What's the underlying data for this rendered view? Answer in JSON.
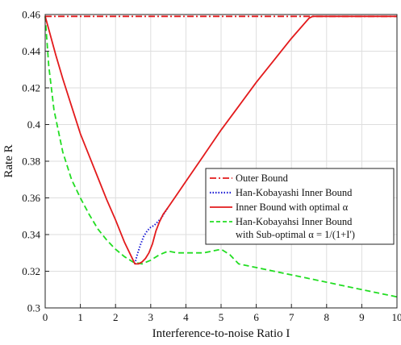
{
  "chart_data": {
    "type": "line",
    "title": "",
    "xlabel": "Interference-to-noise Ratio I",
    "ylabel": "Rate R",
    "xlim": [
      0,
      10
    ],
    "ylim": [
      0.3,
      0.46
    ],
    "xticks": [
      0,
      1,
      2,
      3,
      4,
      5,
      6,
      7,
      8,
      9,
      10
    ],
    "yticks": [
      0.3,
      0.32,
      0.34,
      0.36,
      0.38,
      0.4,
      0.42,
      0.44,
      0.46
    ],
    "xtick_labels": [
      "0",
      "1",
      "2",
      "3",
      "4",
      "5",
      "6",
      "7",
      "8",
      "9",
      "10"
    ],
    "ytick_labels": [
      "0.3",
      "0.32",
      "0.34",
      "0.36",
      "0.38",
      "0.4",
      "0.42",
      "0.44",
      "0.46"
    ],
    "grid": true,
    "legend_position": "right-middle",
    "series": [
      {
        "name": "Outer Bound",
        "color": "#e31a1c",
        "style": "dashdot",
        "x": [
          0,
          10
        ],
        "y": [
          0.459,
          0.459
        ]
      },
      {
        "name": "Han-Kobayashi Inner Bound",
        "color": "#1f1fd6",
        "style": "dotted",
        "x": [
          2.55,
          2.6,
          2.7,
          2.8,
          2.9,
          3.0,
          3.1,
          3.2,
          3.3,
          3.4,
          3.5
        ],
        "y": [
          0.324,
          0.328,
          0.334,
          0.339,
          0.342,
          0.344,
          0.345,
          0.347,
          0.349,
          0.352,
          0.355
        ]
      },
      {
        "name": "Inner Bound with optimal α",
        "color": "#e31a1c",
        "style": "solid",
        "x": [
          0,
          0.1,
          0.3,
          0.5,
          0.75,
          1.0,
          1.25,
          1.5,
          1.75,
          2.0,
          2.25,
          2.5,
          2.55,
          2.65,
          2.75,
          2.85,
          2.95,
          3.05,
          3.15,
          3.25,
          3.35,
          3.5,
          3.75,
          4.0,
          4.5,
          5.0,
          5.5,
          6.0,
          6.5,
          7.0,
          7.5,
          7.6,
          8.0,
          9.0,
          10.0
        ],
        "y": [
          0.459,
          0.452,
          0.438,
          0.425,
          0.41,
          0.395,
          0.383,
          0.371,
          0.359,
          0.348,
          0.336,
          0.326,
          0.324,
          0.324,
          0.325,
          0.327,
          0.33,
          0.335,
          0.342,
          0.347,
          0.351,
          0.355,
          0.362,
          0.369,
          0.383,
          0.397,
          0.41,
          0.423,
          0.435,
          0.447,
          0.458,
          0.459,
          0.459,
          0.459,
          0.459
        ]
      },
      {
        "name": "Han-Kobayahsi Inner Bound with Sub-optimal α = 1/(1+I')",
        "color": "#22dd22",
        "style": "dashed",
        "x": [
          0,
          0.1,
          0.25,
          0.5,
          0.75,
          1.0,
          1.25,
          1.5,
          1.75,
          2.0,
          2.25,
          2.5,
          2.75,
          3.0,
          3.25,
          3.5,
          3.75,
          4.0,
          4.25,
          4.5,
          4.75,
          5.0,
          5.25,
          5.5,
          6.0,
          7.0,
          8.0,
          9.0,
          10.0
        ],
        "y": [
          0.459,
          0.432,
          0.408,
          0.385,
          0.37,
          0.36,
          0.351,
          0.343,
          0.337,
          0.332,
          0.328,
          0.325,
          0.324,
          0.326,
          0.329,
          0.331,
          0.33,
          0.33,
          0.33,
          0.33,
          0.331,
          0.332,
          0.329,
          0.324,
          0.322,
          0.318,
          0.314,
          0.31,
          0.306
        ]
      }
    ],
    "legend": [
      {
        "label": "Outer Bound",
        "color": "#e31a1c",
        "style": "dashdot"
      },
      {
        "label": "Han-Kobayashi Inner Bound",
        "color": "#1f1fd6",
        "style": "dotted"
      },
      {
        "label": "Inner Bound with optimal α",
        "color": "#e31a1c",
        "style": "solid"
      },
      {
        "label": "Han-Kobayahsi Inner Bound",
        "label2": "with Sub-optimal α = 1/(1+I')",
        "color": "#22dd22",
        "style": "dashed"
      }
    ]
  }
}
